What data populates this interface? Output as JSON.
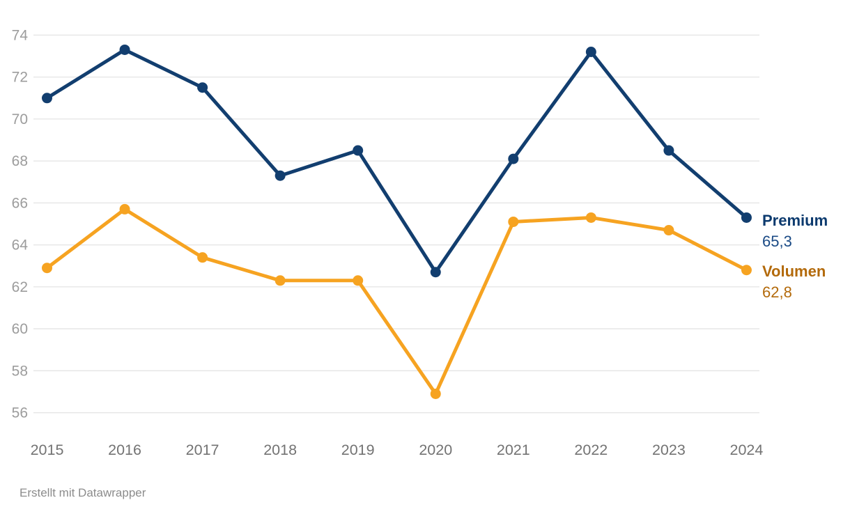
{
  "chart_data": {
    "type": "line",
    "x": [
      "2015",
      "2016",
      "2017",
      "2018",
      "2019",
      "2020",
      "2021",
      "2022",
      "2023",
      "2024"
    ],
    "series": [
      {
        "name": "Premium",
        "values": [
          71.0,
          73.3,
          71.5,
          67.3,
          68.5,
          62.7,
          68.1,
          73.2,
          68.5,
          65.3
        ],
        "color": "#123e6f",
        "end_label": "65,3"
      },
      {
        "name": "Volumen",
        "values": [
          62.9,
          65.7,
          63.4,
          62.3,
          62.3,
          56.9,
          65.1,
          65.3,
          64.7,
          62.8
        ],
        "color": "#f6a321",
        "end_label": "62,8"
      }
    ],
    "title": "",
    "xlabel": "",
    "ylabel": "",
    "ylim": [
      56,
      74
    ],
    "yticks": [
      74,
      72,
      70,
      68,
      66,
      64,
      62,
      60,
      58,
      56
    ],
    "grid": true,
    "legend_position": "right-of-line-end"
  },
  "footer": {
    "credit": "Erstellt mit Datawrapper"
  },
  "colors": {
    "background": "#ffffff",
    "grid": "#e4e4e4",
    "y_axis_text": "#9c9c9c",
    "x_axis_text": "#737373",
    "footer_text": "#8c8c8c",
    "premium_line": "#123e6f",
    "premium_label": "#0c3a6e",
    "premium_value": "#1a4a85",
    "volumen_line": "#f6a321",
    "volumen_label": "#b36a0b",
    "volumen_value": "#b36a0b"
  }
}
